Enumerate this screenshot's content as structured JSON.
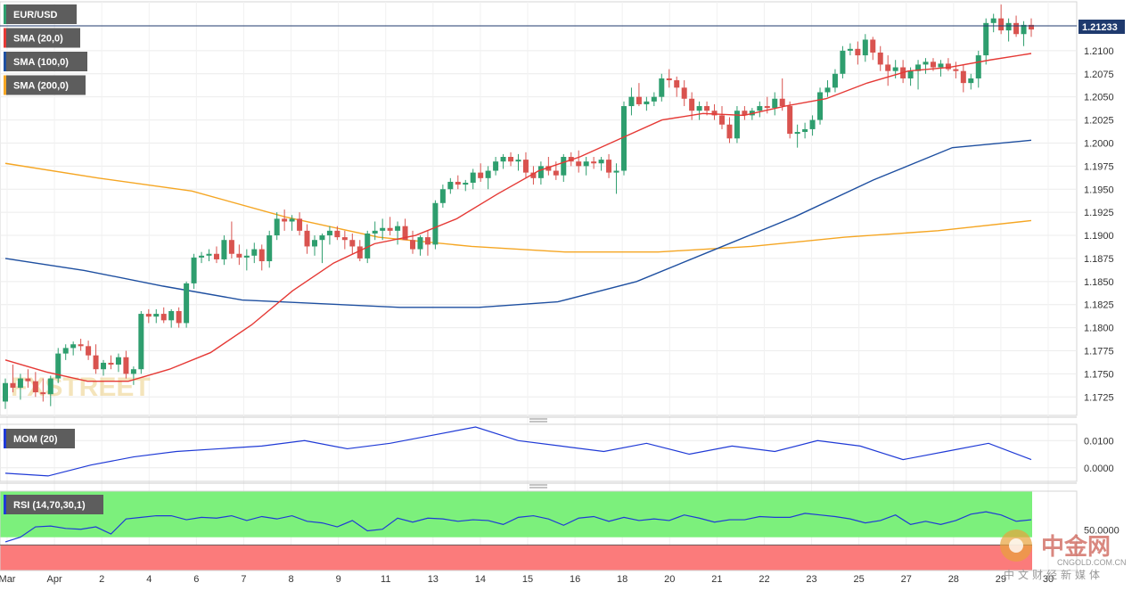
{
  "chart_data": {
    "type": "candlestick",
    "symbol": "EUR/USD",
    "current_price": "1.21233",
    "y_ticks": [
      "1.2100",
      "1.2075",
      "1.2050",
      "1.2025",
      "1.2000",
      "1.1975",
      "1.1950",
      "1.1925",
      "1.1900",
      "1.1875",
      "1.1850",
      "1.1825",
      "1.1800",
      "1.1775",
      "1.1750",
      "1.1725"
    ],
    "ylim": [
      1.1705,
      1.2153
    ],
    "x_labels": [
      "Mar",
      "Apr",
      "2",
      "4",
      "6",
      "7",
      "8",
      "9",
      "11",
      "13",
      "14",
      "15",
      "16",
      "18",
      "20",
      "21",
      "22",
      "23",
      "25",
      "27",
      "28",
      "29",
      "30"
    ],
    "legend": [
      {
        "name": "SMA (20,0)",
        "color": "#e53935"
      },
      {
        "name": "SMA (100,0)",
        "color": "#1e4fa0"
      },
      {
        "name": "SMA (200,0)",
        "color": "#f5a623"
      }
    ],
    "candles_ohlc": [
      [
        1.172,
        1.1745,
        1.1712,
        1.174
      ],
      [
        1.174,
        1.176,
        1.173,
        1.1735
      ],
      [
        1.1735,
        1.175,
        1.1722,
        1.1745
      ],
      [
        1.1745,
        1.1755,
        1.1735,
        1.1742
      ],
      [
        1.1742,
        1.1752,
        1.1725,
        1.173
      ],
      [
        1.173,
        1.1745,
        1.172,
        1.1728
      ],
      [
        1.1728,
        1.1748,
        1.1715,
        1.1745
      ],
      [
        1.1745,
        1.1778,
        1.174,
        1.1772
      ],
      [
        1.1772,
        1.1782,
        1.1765,
        1.1778
      ],
      [
        1.1778,
        1.1785,
        1.177,
        1.1782
      ],
      [
        1.1782,
        1.1788,
        1.1775,
        1.178
      ],
      [
        1.178,
        1.1786,
        1.1765,
        1.177
      ],
      [
        1.177,
        1.1782,
        1.175,
        1.1755
      ],
      [
        1.1755,
        1.1765,
        1.1748,
        1.1762
      ],
      [
        1.1762,
        1.177,
        1.1755,
        1.176
      ],
      [
        1.176,
        1.1772,
        1.1752,
        1.1768
      ],
      [
        1.1768,
        1.1775,
        1.1745,
        1.175
      ],
      [
        1.175,
        1.1758,
        1.1738,
        1.1755
      ],
      [
        1.1755,
        1.1818,
        1.175,
        1.1815
      ],
      [
        1.1815,
        1.182,
        1.1805,
        1.1812
      ],
      [
        1.1812,
        1.182,
        1.1805,
        1.1815
      ],
      [
        1.1815,
        1.1822,
        1.1805,
        1.1808
      ],
      [
        1.1808,
        1.182,
        1.18,
        1.1818
      ],
      [
        1.1818,
        1.1822,
        1.18,
        1.1805
      ],
      [
        1.1805,
        1.185,
        1.18,
        1.1848
      ],
      [
        1.1848,
        1.188,
        1.1842,
        1.1876
      ],
      [
        1.1876,
        1.1882,
        1.187,
        1.1878
      ],
      [
        1.1878,
        1.1885,
        1.1872,
        1.188
      ],
      [
        1.188,
        1.1888,
        1.187,
        1.1874
      ],
      [
        1.1874,
        1.19,
        1.1868,
        1.1895
      ],
      [
        1.1895,
        1.1915,
        1.1875,
        1.188
      ],
      [
        1.188,
        1.189,
        1.1868,
        1.1876
      ],
      [
        1.1876,
        1.1885,
        1.1862,
        1.1878
      ],
      [
        1.1878,
        1.1892,
        1.187,
        1.1885
      ],
      [
        1.1885,
        1.189,
        1.1862,
        1.1872
      ],
      [
        1.1872,
        1.1905,
        1.1865,
        1.19
      ],
      [
        1.19,
        1.1925,
        1.1895,
        1.1918
      ],
      [
        1.1918,
        1.1928,
        1.1905,
        1.1915
      ],
      [
        1.1915,
        1.1922,
        1.1905,
        1.1918
      ],
      [
        1.1918,
        1.1925,
        1.19,
        1.1905
      ],
      [
        1.1905,
        1.1912,
        1.188,
        1.1888
      ],
      [
        1.1888,
        1.19,
        1.1878,
        1.1895
      ],
      [
        1.1895,
        1.1902,
        1.187,
        1.19
      ],
      [
        1.19,
        1.191,
        1.189,
        1.1905
      ],
      [
        1.1905,
        1.191,
        1.1895,
        1.1898
      ],
      [
        1.1898,
        1.1905,
        1.1885,
        1.1895
      ],
      [
        1.1895,
        1.1902,
        1.188,
        1.1888
      ],
      [
        1.1888,
        1.1895,
        1.1872,
        1.1875
      ],
      [
        1.1875,
        1.1905,
        1.187,
        1.1902
      ],
      [
        1.1902,
        1.1915,
        1.1895,
        1.1905
      ],
      [
        1.1905,
        1.1918,
        1.1895,
        1.1908
      ],
      [
        1.1908,
        1.192,
        1.19,
        1.1905
      ],
      [
        1.1905,
        1.1915,
        1.189,
        1.191
      ],
      [
        1.191,
        1.1918,
        1.1898,
        1.1895
      ],
      [
        1.1895,
        1.1905,
        1.188,
        1.1885
      ],
      [
        1.1885,
        1.19,
        1.1878,
        1.1898
      ],
      [
        1.1898,
        1.1905,
        1.1878,
        1.189
      ],
      [
        1.189,
        1.1938,
        1.1885,
        1.1935
      ],
      [
        1.1935,
        1.1955,
        1.193,
        1.195
      ],
      [
        1.195,
        1.1962,
        1.1945,
        1.1958
      ],
      [
        1.1958,
        1.1965,
        1.195,
        1.1955
      ],
      [
        1.1955,
        1.196,
        1.1948,
        1.1957
      ],
      [
        1.1957,
        1.1972,
        1.195,
        1.1968
      ],
      [
        1.1968,
        1.1978,
        1.1958,
        1.1962
      ],
      [
        1.1962,
        1.1975,
        1.195,
        1.197
      ],
      [
        1.197,
        1.1985,
        1.1965,
        1.198
      ],
      [
        1.198,
        1.1988,
        1.1972,
        1.1985
      ],
      [
        1.1985,
        1.199,
        1.1975,
        1.198
      ],
      [
        1.198,
        1.1988,
        1.197,
        1.1982
      ],
      [
        1.1982,
        1.199,
        1.1962,
        1.1968
      ],
      [
        1.1968,
        1.1975,
        1.1955,
        1.1962
      ],
      [
        1.1962,
        1.198,
        1.1955,
        1.1975
      ],
      [
        1.1975,
        1.1985,
        1.1965,
        1.197
      ],
      [
        1.197,
        1.198,
        1.196,
        1.1965
      ],
      [
        1.1965,
        1.1988,
        1.1958,
        1.1985
      ],
      [
        1.1985,
        1.199,
        1.1975,
        1.198
      ],
      [
        1.198,
        1.1992,
        1.1968,
        1.1975
      ],
      [
        1.1975,
        1.1985,
        1.1965,
        1.198
      ],
      [
        1.198,
        1.1985,
        1.1972,
        1.1978
      ],
      [
        1.1978,
        1.1985,
        1.197,
        1.1982
      ],
      [
        1.1982,
        1.1988,
        1.1962,
        1.1968
      ],
      [
        1.1968,
        1.1978,
        1.1945,
        1.197
      ],
      [
        1.197,
        1.2045,
        1.1965,
        1.204
      ],
      [
        1.204,
        1.206,
        1.203,
        1.205
      ],
      [
        1.205,
        1.2065,
        1.204,
        1.2042
      ],
      [
        1.2042,
        1.205,
        1.2035,
        1.2045
      ],
      [
        1.2045,
        1.2055,
        1.204,
        1.205
      ],
      [
        1.205,
        1.2075,
        1.2045,
        1.207
      ],
      [
        1.207,
        1.208,
        1.206,
        1.2068
      ],
      [
        1.2068,
        1.2072,
        1.205,
        1.206
      ],
      [
        1.206,
        1.2068,
        1.204,
        1.2048
      ],
      [
        1.2048,
        1.2055,
        1.2025,
        1.2035
      ],
      [
        1.2035,
        1.2045,
        1.2025,
        1.204
      ],
      [
        1.204,
        1.2045,
        1.203,
        1.2035
      ],
      [
        1.2035,
        1.2042,
        1.2025,
        1.203
      ],
      [
        1.203,
        1.204,
        1.2015,
        1.202
      ],
      [
        1.202,
        1.2028,
        1.2,
        1.2005
      ],
      [
        1.2005,
        1.204,
        1.2,
        1.2035
      ],
      [
        1.2035,
        1.204,
        1.2025,
        1.203
      ],
      [
        1.203,
        1.2038,
        1.2025,
        1.2035
      ],
      [
        1.2035,
        1.2045,
        1.2028,
        1.204
      ],
      [
        1.204,
        1.205,
        1.2032,
        1.2038
      ],
      [
        1.2038,
        1.2055,
        1.203,
        1.2048
      ],
      [
        1.2048,
        1.207,
        1.2035,
        1.204
      ],
      [
        1.204,
        1.2045,
        1.2005,
        1.201
      ],
      [
        1.201,
        1.202,
        1.1995,
        1.2012
      ],
      [
        1.2012,
        1.2022,
        1.2005,
        1.2015
      ],
      [
        1.2015,
        1.203,
        1.2008,
        1.2025
      ],
      [
        1.2025,
        1.206,
        1.202,
        1.2055
      ],
      [
        1.2055,
        1.2068,
        1.205,
        1.206
      ],
      [
        1.206,
        1.208,
        1.2055,
        1.2075
      ],
      [
        1.2075,
        1.2105,
        1.207,
        1.21
      ],
      [
        1.21,
        1.2108,
        1.2095,
        1.2102
      ],
      [
        1.2102,
        1.211,
        1.2085,
        1.2095
      ],
      [
        1.2095,
        1.2118,
        1.2088,
        1.2112
      ],
      [
        1.2112,
        1.2115,
        1.209,
        1.2098
      ],
      [
        1.2098,
        1.2105,
        1.2078,
        1.2085
      ],
      [
        1.2085,
        1.2095,
        1.2062,
        1.2078
      ],
      [
        1.2078,
        1.209,
        1.207,
        1.2082
      ],
      [
        1.2082,
        1.209,
        1.2065,
        1.207
      ],
      [
        1.207,
        1.2082,
        1.2062,
        1.2078
      ],
      [
        1.2078,
        1.209,
        1.2058,
        1.2085
      ],
      [
        1.2085,
        1.2092,
        1.2075,
        1.2088
      ],
      [
        1.2088,
        1.2092,
        1.2078,
        1.2082
      ],
      [
        1.2082,
        1.209,
        1.2072,
        1.2086
      ],
      [
        1.2086,
        1.2092,
        1.2078,
        1.208
      ],
      [
        1.208,
        1.2088,
        1.207,
        1.2078
      ],
      [
        1.2078,
        1.2085,
        1.2055,
        1.2065
      ],
      [
        1.2065,
        1.2075,
        1.2058,
        1.207
      ],
      [
        1.207,
        1.21,
        1.206,
        1.2095
      ],
      [
        1.2095,
        1.2135,
        1.2085,
        1.213
      ],
      [
        1.213,
        1.214,
        1.212,
        1.2135
      ],
      [
        1.2135,
        1.215,
        1.2118,
        1.2122
      ],
      [
        1.2122,
        1.2135,
        1.211,
        1.213
      ],
      [
        1.213,
        1.2138,
        1.2115,
        1.2118
      ],
      [
        1.2118,
        1.2132,
        1.2105,
        1.2128
      ],
      [
        1.2128,
        1.2135,
        1.2115,
        1.2123
      ]
    ],
    "sma20": [
      1.1765,
      1.1752,
      1.1742,
      1.1742,
      1.1755,
      1.1773,
      1.1803,
      1.184,
      1.187,
      1.1891,
      1.19,
      1.1918,
      1.1945,
      1.197,
      1.1985,
      1.2005,
      1.2025,
      1.2032,
      1.203,
      1.204,
      1.2048,
      1.2065,
      1.2078,
      1.2082,
      1.209,
      1.2097
    ],
    "sma100": [
      1.1875,
      1.1862,
      1.1845,
      1.183,
      1.1826,
      1.1822,
      1.1822,
      1.1828,
      1.185,
      1.1885,
      1.192,
      1.196,
      1.1995,
      1.2003
    ],
    "sma200": [
      1.1978,
      1.1962,
      1.1948,
      1.192,
      1.1898,
      1.1888,
      1.1882,
      1.1882,
      1.1888,
      1.1898,
      1.1905,
      1.1916
    ],
    "indicators": [
      {
        "name": "MOM (20)",
        "ticks": [
          "0.0100",
          "0.0000"
        ]
      },
      {
        "name": "RSI (14,70,30,1)",
        "ticks": [
          "50.0000"
        ]
      }
    ],
    "mom": [
      -0.002,
      -0.003,
      0.001,
      0.004,
      0.006,
      0.007,
      0.008,
      0.01,
      0.007,
      0.009,
      0.012,
      0.015,
      0.01,
      0.008,
      0.006,
      0.009,
      0.005,
      0.008,
      0.006,
      0.01,
      0.008,
      0.003,
      0.006,
      0.009,
      0.003
    ],
    "rsi": [
      36,
      42,
      55,
      56,
      53,
      52,
      55,
      46,
      65,
      67,
      69,
      69,
      64,
      67,
      66,
      69,
      63,
      68,
      65,
      69,
      62,
      60,
      55,
      63,
      50,
      52,
      66,
      61,
      66,
      65,
      62,
      64,
      63,
      58,
      67,
      69,
      65,
      57,
      66,
      68,
      62,
      67,
      63,
      65,
      63,
      70,
      66,
      61,
      64,
      64,
      68,
      67,
      67,
      72,
      70,
      68,
      65,
      60,
      63,
      70,
      58,
      62,
      58,
      63,
      71,
      74,
      70,
      62,
      64
    ]
  },
  "watermark": "FXSTREET",
  "logo": {
    "cn": "中金网",
    "en": "CNGOLD.COM.CN",
    "sub": "中文财经新媒体"
  }
}
